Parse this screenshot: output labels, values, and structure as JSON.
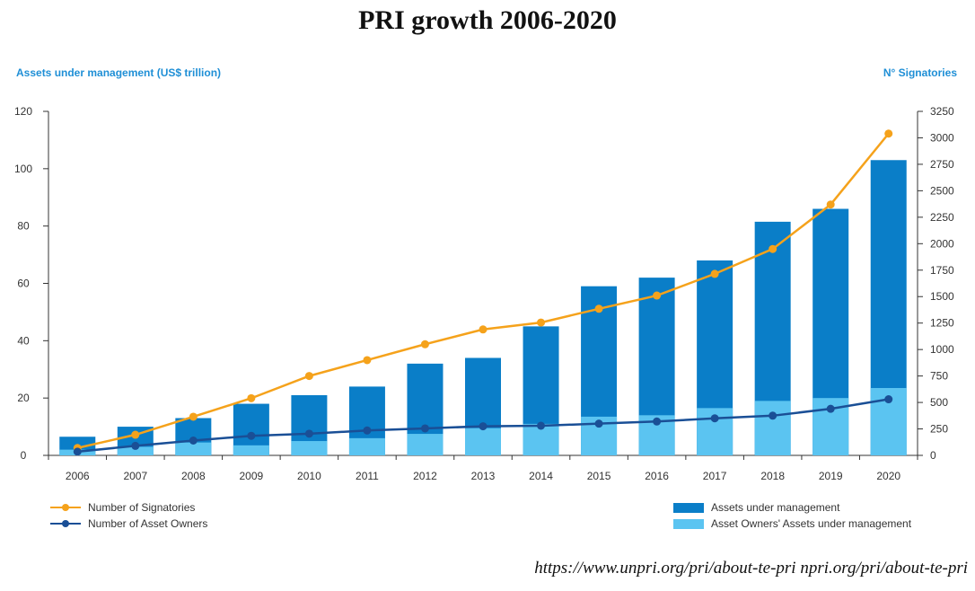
{
  "title": "PRI growth 2006-2020",
  "source_text": "https://www.unpri.org/pri/about-te-pri npri.org/pri/about-te-pri",
  "colors": {
    "aum": "#0a7ec8",
    "owners_aum": "#5bc4f1",
    "signatories": "#f5a21b",
    "owners": "#1a4f96",
    "title_blue": "#1f8fd6"
  },
  "chart_data": {
    "type": "bar",
    "title": "PRI growth 2006-2020",
    "ylabel": "Assets under management (US$ trillion)",
    "y2label": "N° Signatories",
    "ylim": [
      0,
      120
    ],
    "y2lim": [
      0,
      3250
    ],
    "yticks": [
      0,
      20,
      40,
      60,
      80,
      100,
      120
    ],
    "y2ticks": [
      0,
      250,
      500,
      750,
      1000,
      1250,
      1500,
      1750,
      2000,
      2250,
      2500,
      2750,
      3000,
      3250
    ],
    "categories": [
      "2006",
      "2007",
      "2008",
      "2009",
      "2010",
      "2011",
      "2012",
      "2013",
      "2014",
      "2015",
      "2016",
      "2017",
      "2018",
      "2019",
      "2020"
    ],
    "series": [
      {
        "name": "Assets under management",
        "kind": "bar",
        "axis": "left",
        "values": [
          6.5,
          10,
          13,
          18,
          21,
          24,
          32,
          34,
          45,
          59,
          62,
          68,
          81.5,
          86,
          103
        ]
      },
      {
        "name": "Asset Owners' Assets under management",
        "kind": "bar",
        "axis": "left",
        "values": [
          2,
          3,
          4.5,
          3.5,
          5,
          6,
          7.5,
          9.5,
          11,
          13.5,
          14,
          16.5,
          19,
          20,
          23.5
        ]
      },
      {
        "name": "Number of Signatories",
        "kind": "line",
        "axis": "right",
        "values": [
          70,
          195,
          365,
          540,
          750,
          900,
          1050,
          1190,
          1255,
          1385,
          1510,
          1715,
          1950,
          2370,
          3040
        ]
      },
      {
        "name": "Number of Asset Owners",
        "kind": "line",
        "axis": "right",
        "values": [
          35,
          90,
          140,
          185,
          205,
          235,
          255,
          275,
          280,
          300,
          320,
          350,
          375,
          440,
          530
        ]
      }
    ],
    "legend": {
      "left": [
        "Number of Signatories",
        "Number of Asset Owners"
      ],
      "right": [
        "Assets under management",
        "Asset Owners' Assets under management"
      ]
    },
    "grid": false
  }
}
